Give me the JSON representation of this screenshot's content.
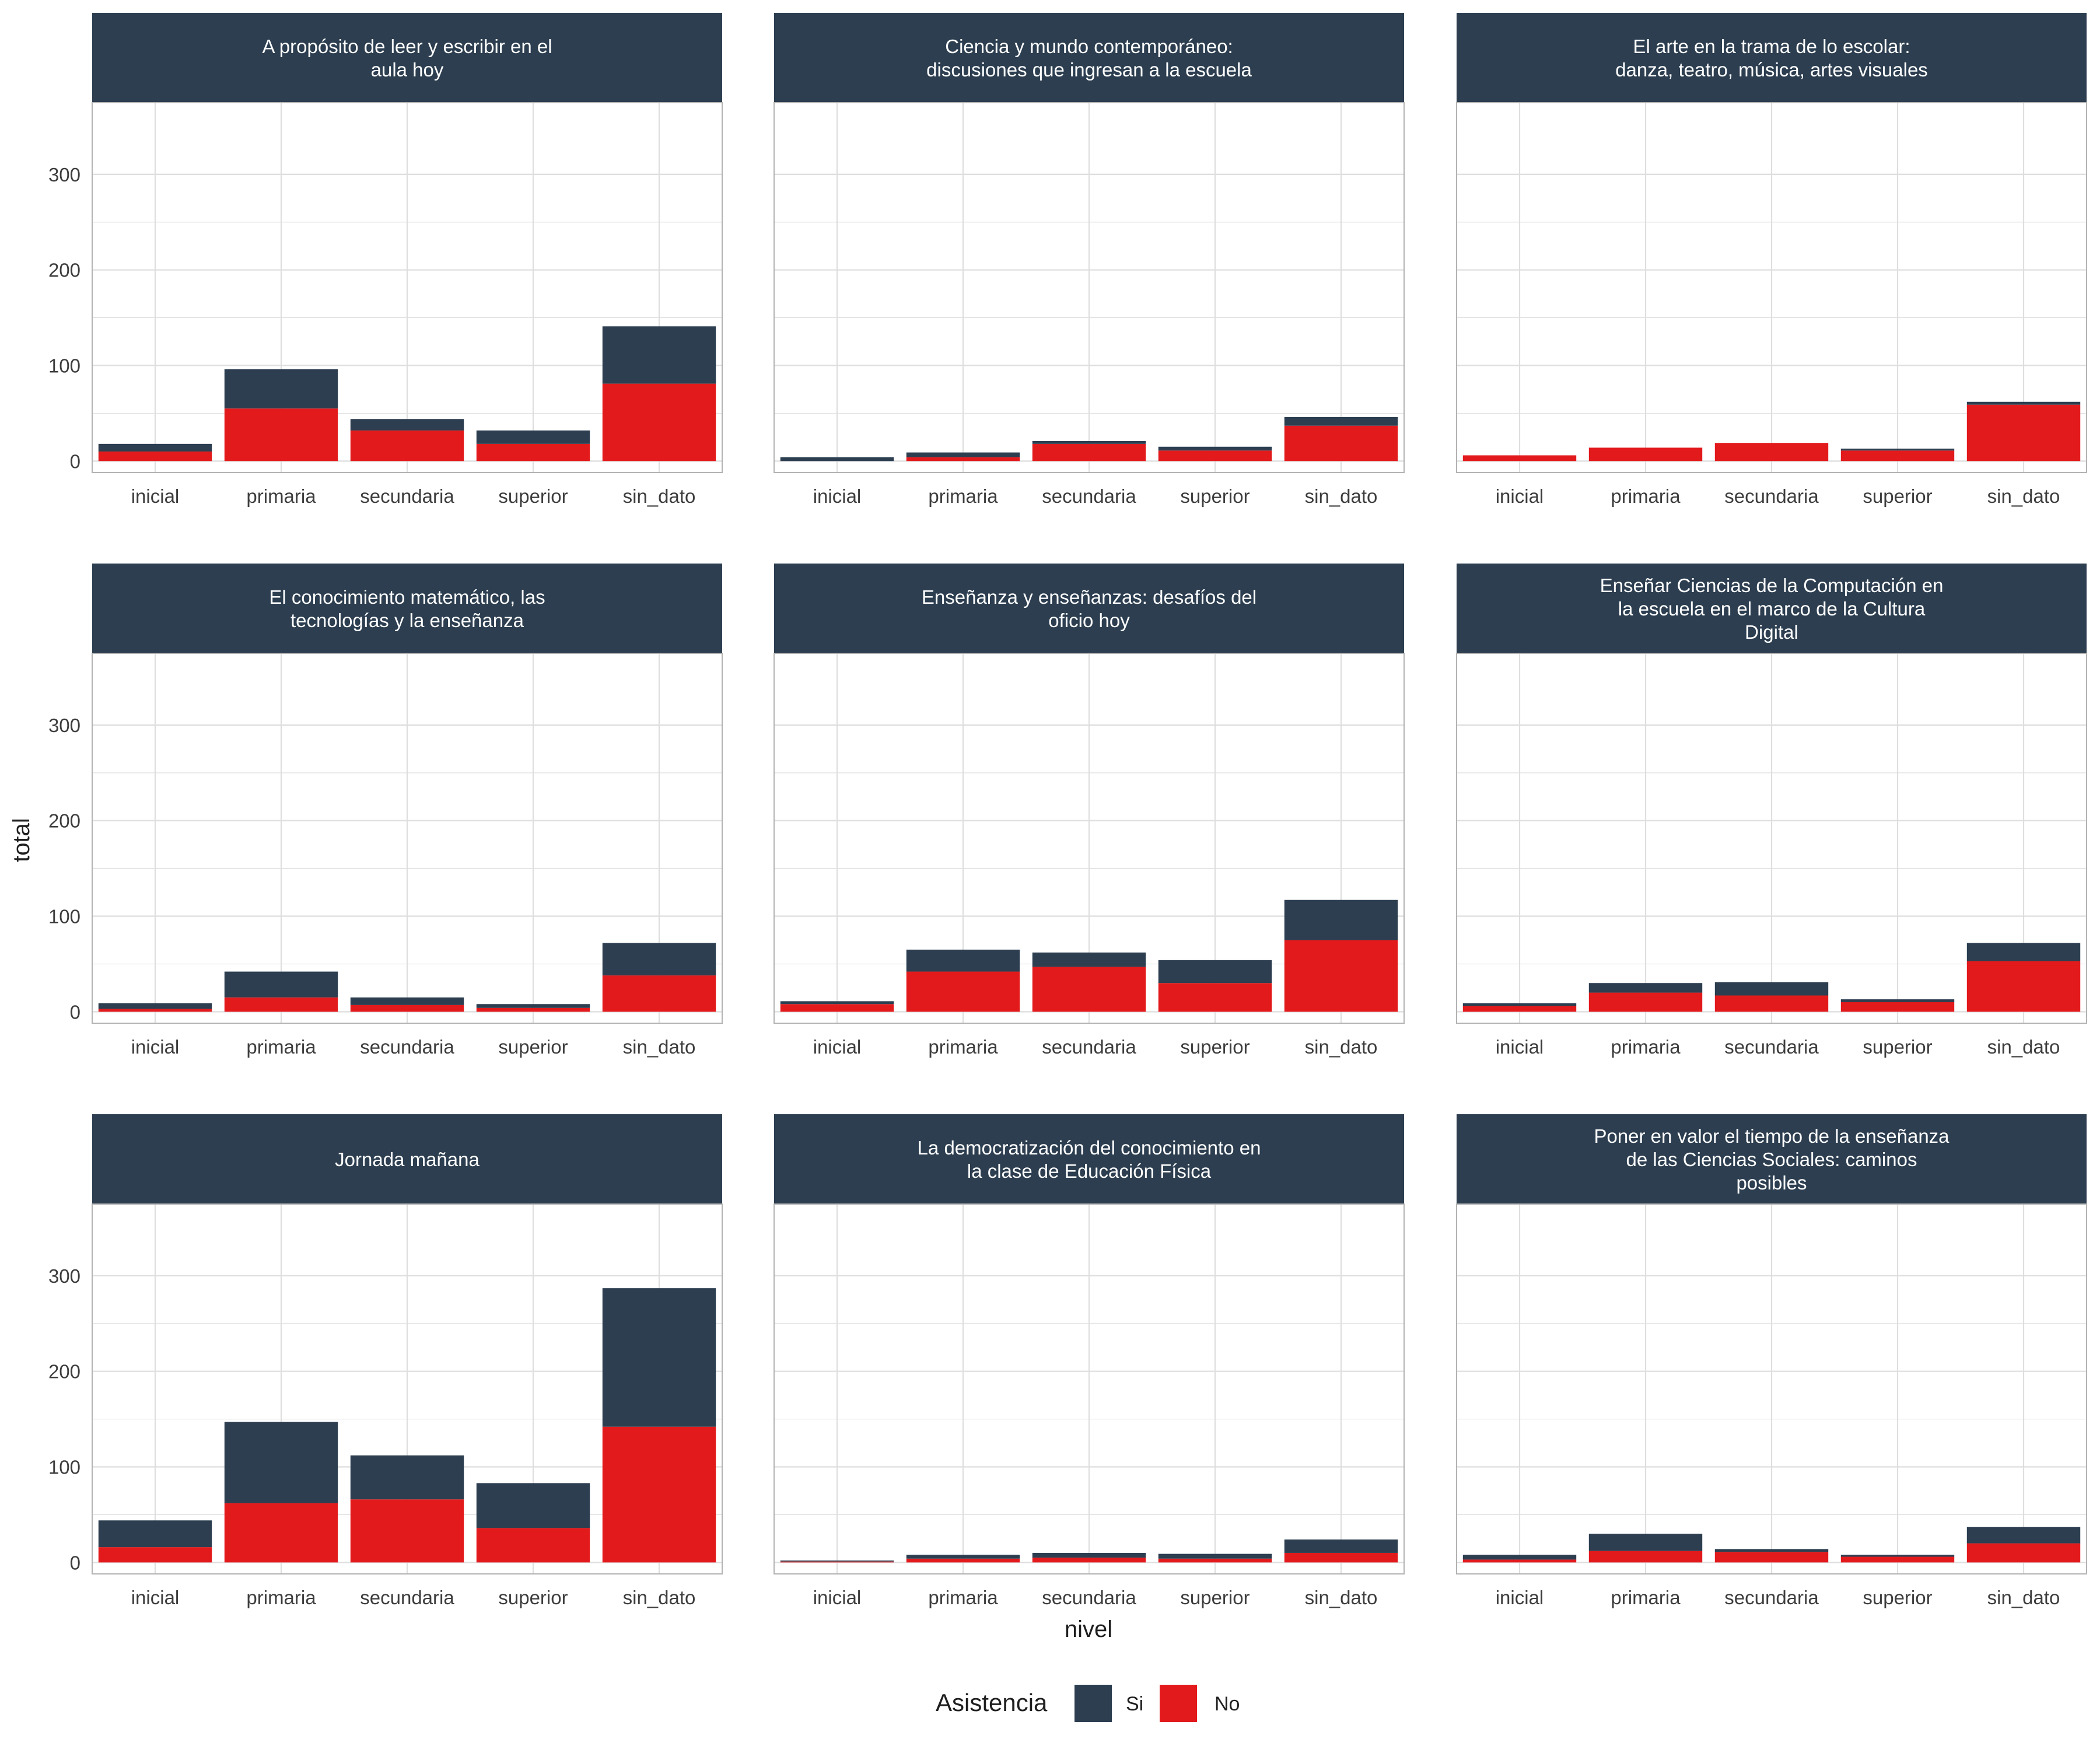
{
  "figure": {
    "ylabel": "total",
    "xlabel": "nivel",
    "legend_title": "Asistencia",
    "legend_items": [
      {
        "label": "Si",
        "color": "#2c3e50"
      },
      {
        "label": "No",
        "color": "#e31a1c"
      }
    ],
    "legend_position": "bottom",
    "colors": {
      "si": "#2c3e50",
      "no": "#e31a1c",
      "strip": "#2c3e50",
      "strip_text": "#ffffff",
      "grid": "#dedede",
      "axis_text": "#3d3d3d"
    }
  },
  "chart_data": {
    "type": "bar",
    "stacked": true,
    "facets": "3x3",
    "categories": [
      "inicial",
      "primaria",
      "secundaria",
      "superior",
      "sin_dato"
    ],
    "yticks": [
      0,
      100,
      200,
      300
    ],
    "ylim": [
      -12,
      375
    ],
    "grid": true,
    "panels": [
      {
        "title": [
          "A propósito de leer y escribir en el",
          "aula hoy"
        ],
        "series": [
          {
            "name": "No",
            "values": [
              10,
              55,
              32,
              18,
              81
            ]
          },
          {
            "name": "Si",
            "values": [
              8,
              41,
              12,
              14,
              60
            ]
          }
        ]
      },
      {
        "title": [
          "Ciencia y mundo contemporáneo:",
          "discusiones que ingresan a la escuela"
        ],
        "series": [
          {
            "name": "No",
            "values": [
              0,
              4,
              18,
              11,
              37
            ]
          },
          {
            "name": "Si",
            "values": [
              4,
              5,
              3,
              4,
              9
            ]
          }
        ]
      },
      {
        "title": [
          "El arte en la trama de lo escolar:",
          "danza, teatro, música, artes visuales"
        ],
        "series": [
          {
            "name": "No",
            "values": [
              6,
              14,
              19,
              11,
              59
            ]
          },
          {
            "name": "Si",
            "values": [
              0,
              0,
              0,
              2,
              3
            ]
          }
        ]
      },
      {
        "title": [
          "El conocimiento matemático, las",
          "tecnologías y la enseñanza"
        ],
        "series": [
          {
            "name": "No",
            "values": [
              3,
              15,
              7,
              4,
              38
            ]
          },
          {
            "name": "Si",
            "values": [
              6,
              27,
              8,
              4,
              34
            ]
          }
        ]
      },
      {
        "title": [
          "Enseñanza y enseñanzas: desafíos del",
          "oficio hoy"
        ],
        "series": [
          {
            "name": "No",
            "values": [
              8,
              42,
              47,
              30,
              75
            ]
          },
          {
            "name": "Si",
            "values": [
              3,
              23,
              15,
              24,
              42
            ]
          }
        ]
      },
      {
        "title": [
          "Enseñar Ciencias de la Computación en",
          "la escuela en el marco de la Cultura",
          "Digital"
        ],
        "series": [
          {
            "name": "No",
            "values": [
              6,
              20,
              17,
              10,
              53
            ]
          },
          {
            "name": "Si",
            "values": [
              3,
              10,
              14,
              3,
              19
            ]
          }
        ]
      },
      {
        "title": [
          "Jornada mañana"
        ],
        "series": [
          {
            "name": "No",
            "values": [
              16,
              62,
              66,
              36,
              142
            ]
          },
          {
            "name": "Si",
            "values": [
              28,
              85,
              46,
              47,
              145
            ]
          }
        ]
      },
      {
        "title": [
          "La democratización del conocimiento en",
          "la clase de Educación Física"
        ],
        "series": [
          {
            "name": "No",
            "values": [
              1,
              4,
              5,
              4,
              10
            ]
          },
          {
            "name": "Si",
            "values": [
              1,
              4,
              5,
              5,
              14
            ]
          }
        ]
      },
      {
        "title": [
          "Poner en valor el tiempo de la enseñanza",
          "de las Ciencias Sociales: caminos",
          "posibles"
        ],
        "series": [
          {
            "name": "No",
            "values": [
              3,
              12,
              11,
              6,
              20
            ]
          },
          {
            "name": "Si",
            "values": [
              5,
              18,
              3,
              2,
              17
            ]
          }
        ]
      }
    ]
  }
}
